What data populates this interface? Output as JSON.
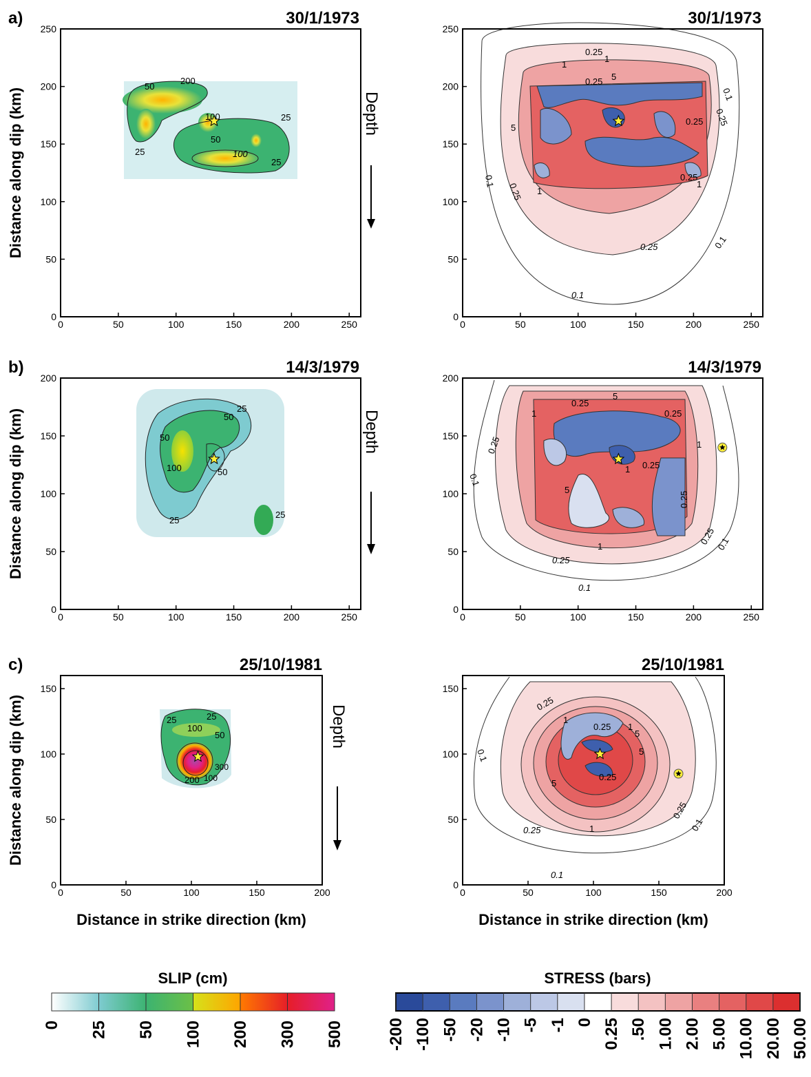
{
  "panel_letters": [
    "a)",
    "b)",
    "c)"
  ],
  "depth_label": "Depth",
  "colors": {
    "slip_scale": [
      "#ffffff",
      "#7ecbd0",
      "#3cb371",
      "#33aa33",
      "#ffe600",
      "#ff8c00",
      "#e61e28",
      "#e0218a",
      "#a64ca6"
    ],
    "stress_negative": [
      "#2a4a9a",
      "#3e5fad",
      "#5a7bbf",
      "#7b93cc",
      "#9eb0d9",
      "#bcc8e6",
      "#d9e0f0"
    ],
    "stress_positive": [
      "#ffffff",
      "#f8dcdc",
      "#f4c2c2",
      "#eea3a3",
      "#e98080",
      "#e46262",
      "#e04848",
      "#dc2f2f"
    ],
    "hypocenter_star": "#ffef3a"
  },
  "chart_data": [
    {
      "type": "heatmap",
      "panel": "a",
      "quantity": "slip",
      "title": "30/1/1973",
      "xlabel": "",
      "ylabel": "Distance along dip (km)",
      "xlim": [
        0,
        260
      ],
      "ylim": [
        0,
        250
      ],
      "xticks": [
        0,
        50,
        100,
        150,
        200,
        250
      ],
      "yticks": [
        0,
        50,
        100,
        150,
        200,
        250
      ],
      "contour_labels": [
        "25",
        "50",
        "100",
        "200"
      ],
      "hypocenter": [
        133,
        170
      ]
    },
    {
      "type": "heatmap",
      "panel": "a",
      "quantity": "stress",
      "title": "30/1/1973",
      "xlabel": "",
      "ylabel": "",
      "xlim": [
        0,
        260
      ],
      "ylim": [
        0,
        250
      ],
      "xticks": [
        0,
        50,
        100,
        150,
        200,
        250
      ],
      "yticks": [
        0,
        50,
        100,
        150,
        200,
        250
      ],
      "contour_labels": [
        "0.1",
        "0.25",
        "1",
        "5"
      ],
      "hypocenter": [
        135,
        170
      ]
    },
    {
      "type": "heatmap",
      "panel": "b",
      "quantity": "slip",
      "title": "14/3/1979",
      "xlabel": "",
      "ylabel": "Distance along dip (km)",
      "xlim": [
        0,
        260
      ],
      "ylim": [
        0,
        200
      ],
      "xticks": [
        0,
        50,
        100,
        150,
        200,
        250
      ],
      "yticks": [
        0,
        50,
        100,
        150,
        200
      ],
      "contour_labels": [
        "25",
        "50",
        "100"
      ],
      "hypocenter": [
        133,
        130
      ]
    },
    {
      "type": "heatmap",
      "panel": "b",
      "quantity": "stress",
      "title": "14/3/1979",
      "xlabel": "",
      "ylabel": "",
      "xlim": [
        0,
        260
      ],
      "ylim": [
        0,
        200
      ],
      "xticks": [
        0,
        50,
        100,
        150,
        200,
        250
      ],
      "yticks": [
        0,
        50,
        100,
        150,
        200
      ],
      "contour_labels": [
        "0.1",
        "0.25",
        "1",
        "5"
      ],
      "hypocenter": [
        135,
        130
      ],
      "second_star": [
        225,
        140
      ]
    },
    {
      "type": "heatmap",
      "panel": "c",
      "quantity": "slip",
      "title": "25/10/1981",
      "xlabel": "Distance in strike direction (km)",
      "ylabel": "Distance along dip (km)",
      "xlim": [
        0,
        200
      ],
      "ylim": [
        0,
        160
      ],
      "xticks": [
        0,
        50,
        100,
        150,
        200
      ],
      "yticks": [
        0,
        50,
        100,
        150
      ],
      "contour_labels": [
        "25",
        "50",
        "100",
        "200",
        "300"
      ],
      "hypocenter": [
        105,
        98
      ]
    },
    {
      "type": "heatmap",
      "panel": "c",
      "quantity": "stress",
      "title": "25/10/1981",
      "xlabel": "Distance in strike direction (km)",
      "ylabel": "",
      "xlim": [
        0,
        200
      ],
      "ylim": [
        0,
        160
      ],
      "xticks": [
        0,
        50,
        100,
        150,
        200
      ],
      "yticks": [
        0,
        50,
        100,
        150
      ],
      "contour_labels": [
        "0.1",
        "0.25",
        "1",
        "5"
      ],
      "hypocenter": [
        105,
        100
      ],
      "second_star": [
        165,
        85
      ]
    }
  ],
  "legends": {
    "slip": {
      "title": "SLIP (cm)",
      "tick_labels": [
        "0",
        "25",
        "50",
        "100",
        "200",
        "300",
        "500"
      ]
    },
    "stress": {
      "title": "STRESS (bars)",
      "tick_labels": [
        "-200",
        "-100",
        "-50",
        "-20",
        "-10",
        "-5",
        "-1",
        "0",
        "0.25",
        ".50",
        "1.00",
        "2.00",
        "5.00",
        "10.00",
        "20.00",
        "50.00"
      ]
    }
  }
}
